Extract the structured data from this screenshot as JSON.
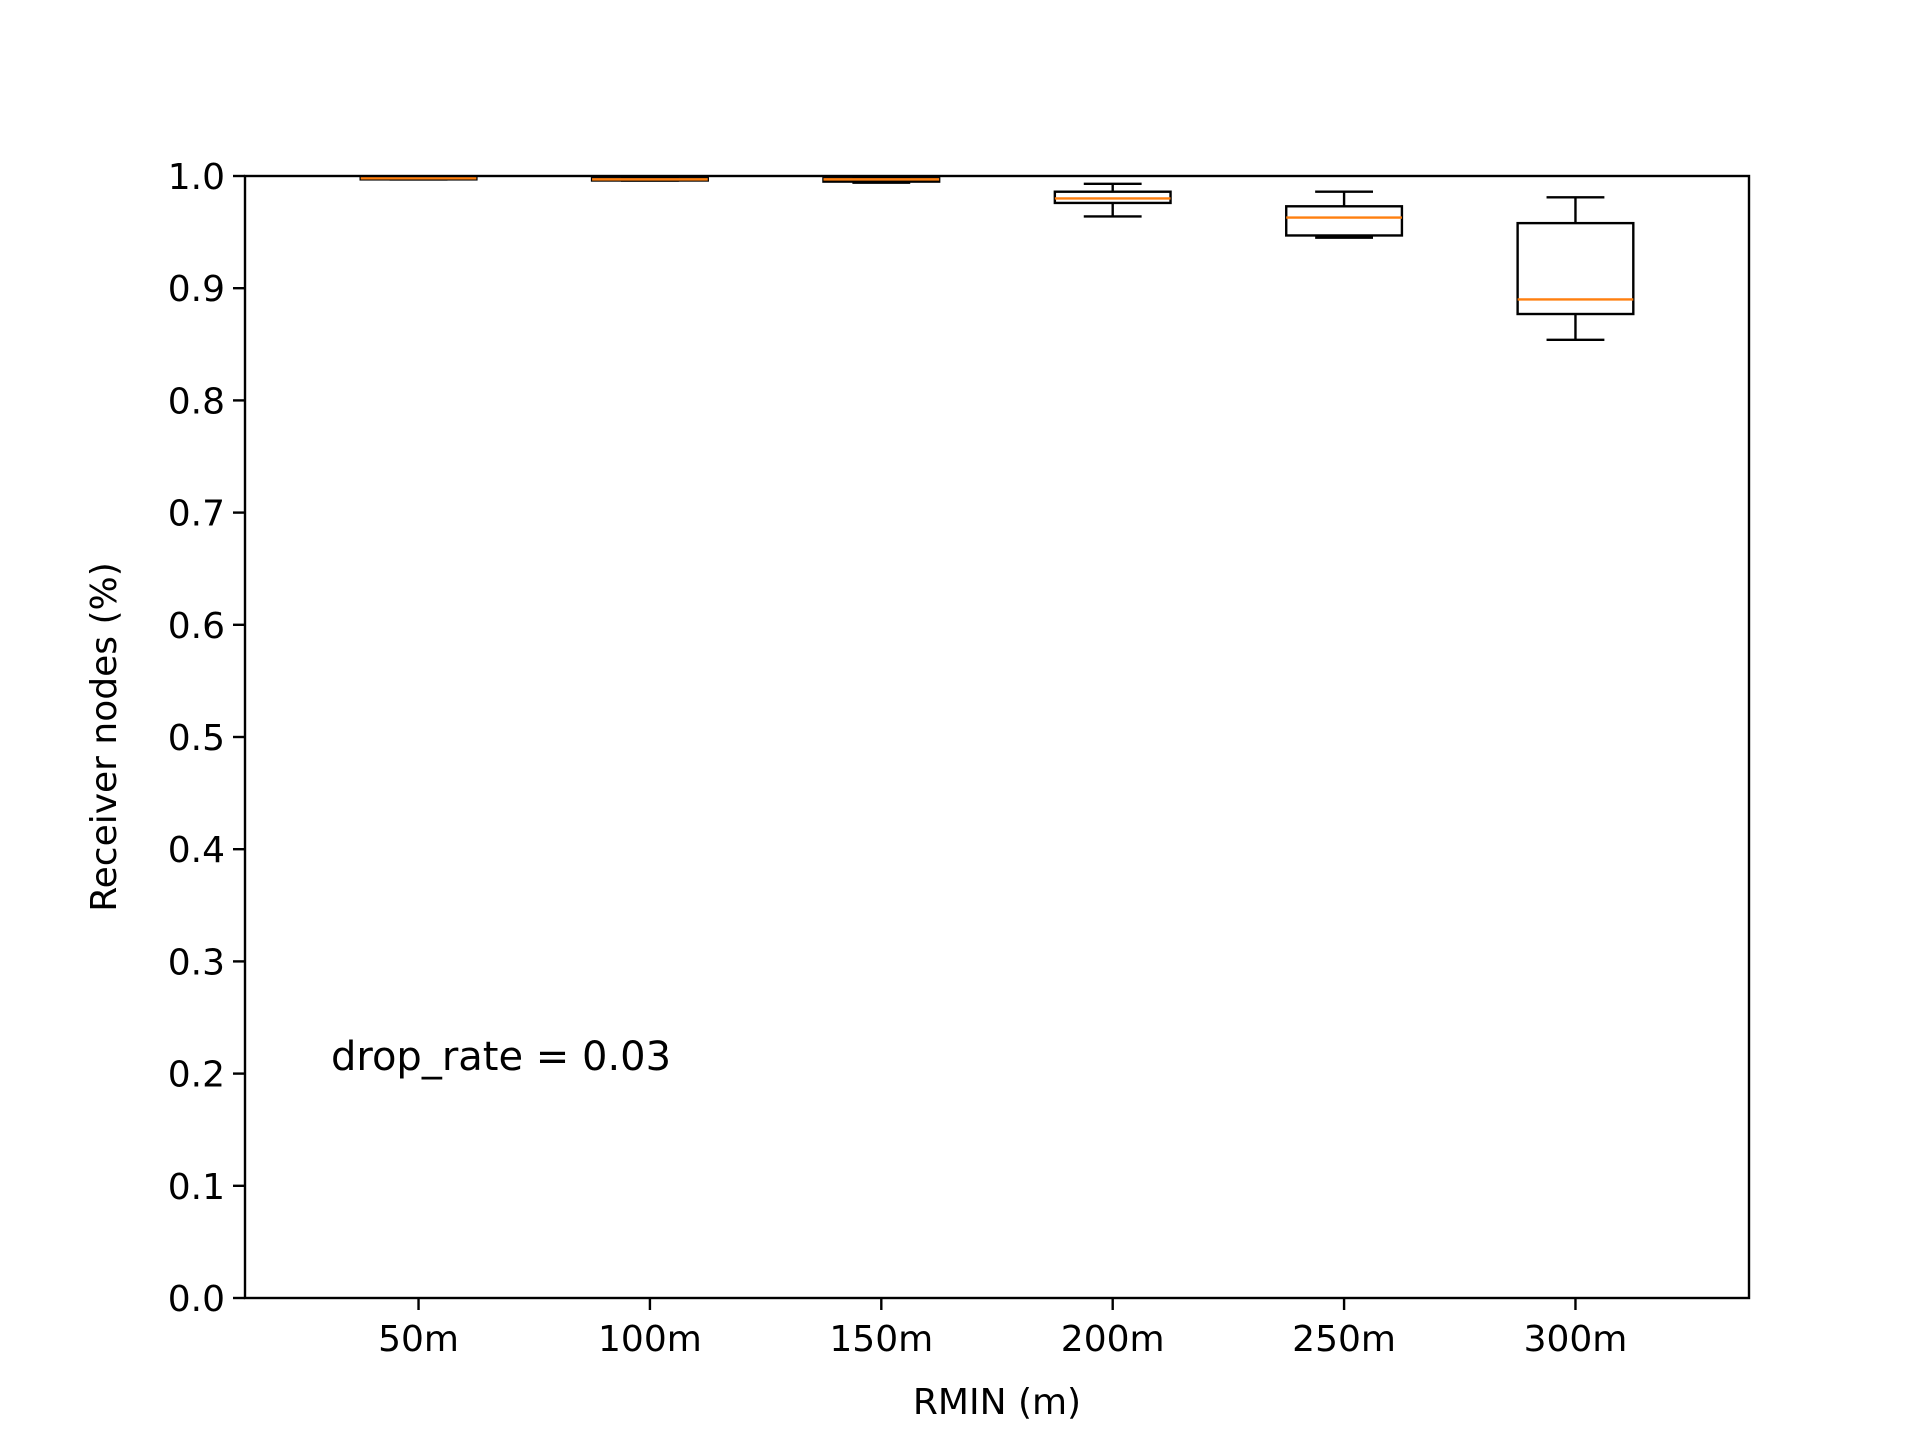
{
  "chart_data": {
    "type": "box",
    "title": "",
    "xlabel": "RMIN (m)",
    "ylabel": "Receiver nodes (%)",
    "ylim": [
      0,
      1.0
    ],
    "yticks": [
      "0.0",
      "0.1",
      "0.2",
      "0.3",
      "0.4",
      "0.5",
      "0.6",
      "0.7",
      "0.8",
      "0.9",
      "1.0"
    ],
    "categories": [
      "50m",
      "100m",
      "150m",
      "200m",
      "250m",
      "300m"
    ],
    "boxes": [
      {
        "whisker_low": 0.997,
        "q1": 0.997,
        "median": 0.998,
        "q3": 0.999,
        "whisker_high": 0.999
      },
      {
        "whisker_low": 0.996,
        "q1": 0.996,
        "median": 0.997,
        "q3": 0.998,
        "whisker_high": 0.998
      },
      {
        "whisker_low": 0.994,
        "q1": 0.995,
        "median": 0.997,
        "q3": 0.998,
        "whisker_high": 0.999
      },
      {
        "whisker_low": 0.964,
        "q1": 0.976,
        "median": 0.98,
        "q3": 0.986,
        "whisker_high": 0.993
      },
      {
        "whisker_low": 0.945,
        "q1": 0.947,
        "median": 0.963,
        "q3": 0.973,
        "whisker_high": 0.986
      },
      {
        "whisker_low": 0.854,
        "q1": 0.877,
        "median": 0.89,
        "q3": 0.958,
        "whisker_high": 0.981
      }
    ],
    "annotation": "drop_rate = 0.03",
    "grid": false,
    "colors": {
      "box": "#000000",
      "median": "#ff7f0e"
    }
  }
}
